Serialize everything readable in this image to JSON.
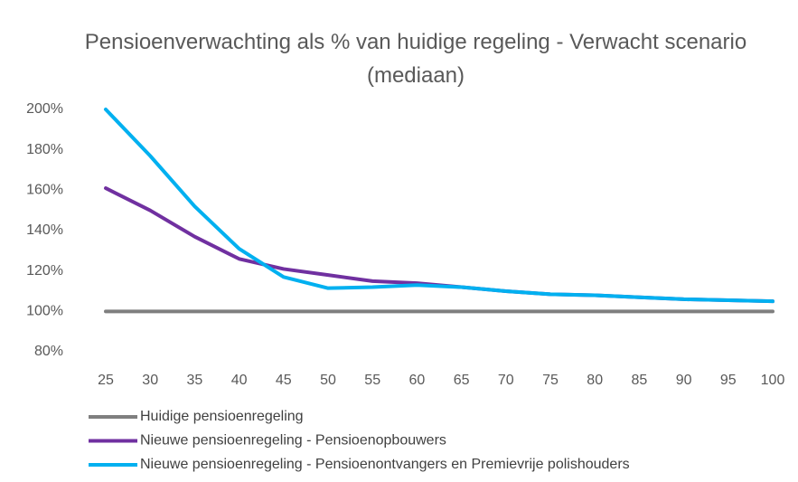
{
  "chart_data": {
    "type": "line",
    "title": "Pensioenverwachting als % van huidige regeling - Verwacht scenario (mediaan)",
    "categories": [
      "25",
      "30",
      "35",
      "40",
      "45",
      "50",
      "55",
      "60",
      "65",
      "70",
      "75",
      "80",
      "85",
      "90",
      "95",
      "100"
    ],
    "series": [
      {
        "name": "Huidige pensioenregeling",
        "color": "#7f7f7f",
        "values": [
          100,
          100,
          100,
          100,
          100,
          100,
          100,
          100,
          100,
          100,
          100,
          100,
          100,
          100,
          100,
          100
        ]
      },
      {
        "name": "Nieuwe pensioenregeling - Pensioenopbouwers",
        "color": "#7030a0",
        "values": [
          161,
          150,
          137,
          126,
          121,
          118,
          115,
          114,
          112,
          110,
          108.5,
          108,
          107,
          106,
          105.5,
          105
        ]
      },
      {
        "name": "Nieuwe pensioenregeling - Pensioenontvangers en Premievrije polishouders",
        "color": "#00b0f0",
        "values": [
          200,
          177,
          152,
          131,
          117,
          111.5,
          112,
          113,
          112,
          110,
          108.5,
          108,
          107,
          106,
          105.5,
          105
        ]
      }
    ],
    "ylim": [
      80,
      200
    ],
    "yticks": [
      {
        "value": 80,
        "label": "80%"
      },
      {
        "value": 100,
        "label": "100%"
      },
      {
        "value": 120,
        "label": "120%"
      },
      {
        "value": 140,
        "label": "140%"
      },
      {
        "value": 160,
        "label": "160%"
      },
      {
        "value": 180,
        "label": "180%"
      },
      {
        "value": 200,
        "label": "200%"
      }
    ],
    "grid": false,
    "legend": "bottom"
  }
}
